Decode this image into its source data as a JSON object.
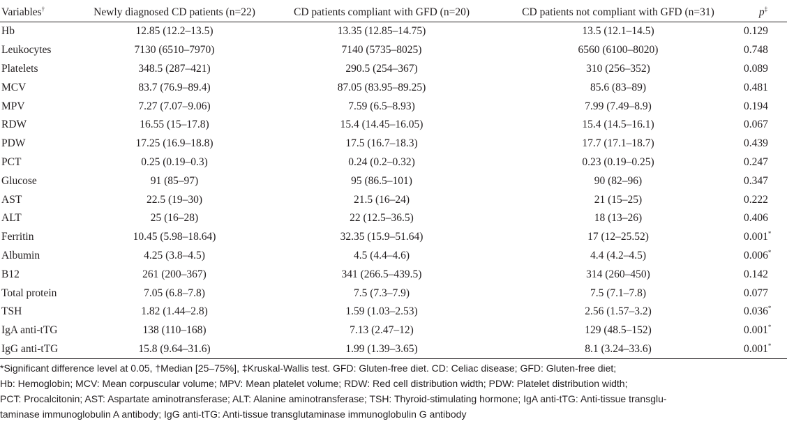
{
  "table": {
    "headers": {
      "variable": "Variables",
      "variable_mark": "†",
      "col1": "Newly diagnosed CD patients (n=22)",
      "col2": "CD patients compliant with GFD (n=20)",
      "col3": "CD patients not compliant with GFD (n=31)",
      "p": "p",
      "p_mark": "‡"
    },
    "rows": [
      {
        "variable": "Hb",
        "col1": "12.85 (12.2–13.5)",
        "col2": "13.35 (12.85–14.75)",
        "col3": "13.5 (12.1–14.5)",
        "p": "0.129",
        "sig": ""
      },
      {
        "variable": "Leukocytes",
        "col1": "7130 (6510–7970)",
        "col2": "7140 (5735–8025)",
        "col3": "6560 (6100–8020)",
        "p": "0.748",
        "sig": ""
      },
      {
        "variable": "Platelets",
        "col1": "348.5 (287–421)",
        "col2": "290.5 (254–367)",
        "col3": "310 (256–352)",
        "p": "0.089",
        "sig": ""
      },
      {
        "variable": "MCV",
        "col1": "83.7 (76.9–89.4)",
        "col2": "87.05 (83.95–89.25)",
        "col3": "85.6 (83–89)",
        "p": "0.481",
        "sig": ""
      },
      {
        "variable": "MPV",
        "col1": "7.27 (7.07–9.06)",
        "col2": "7.59 (6.5–8.93)",
        "col3": "7.99 (7.49–8.9)",
        "p": "0.194",
        "sig": ""
      },
      {
        "variable": "RDW",
        "col1": "16.55 (15–17.8)",
        "col2": "15.4 (14.45–16.05)",
        "col3": "15.4 (14.5–16.1)",
        "p": "0.067",
        "sig": ""
      },
      {
        "variable": "PDW",
        "col1": "17.25 (16.9–18.8)",
        "col2": "17.5 (16.7–18.3)",
        "col3": "17.7 (17.1–18.7)",
        "p": "0.439",
        "sig": ""
      },
      {
        "variable": "PCT",
        "col1": "0.25 (0.19–0.3)",
        "col2": "0.24 (0.2–0.32)",
        "col3": "0.23 (0.19–0.25)",
        "p": "0.247",
        "sig": ""
      },
      {
        "variable": "Glucose",
        "col1": "91 (85–97)",
        "col2": "95 (86.5–101)",
        "col3": "90 (82–96)",
        "p": "0.347",
        "sig": ""
      },
      {
        "variable": "AST",
        "col1": "22.5 (19–30)",
        "col2": "21.5 (16–24)",
        "col3": "21 (15–25)",
        "p": "0.222",
        "sig": ""
      },
      {
        "variable": "ALT",
        "col1": "25 (16–28)",
        "col2": "22 (12.5–36.5)",
        "col3": "18 (13–26)",
        "p": "0.406",
        "sig": ""
      },
      {
        "variable": "Ferritin",
        "col1": "10.45 (5.98–18.64)",
        "col2": "32.35 (15.9–51.64)",
        "col3": "17 (12–25.52)",
        "p": "0.001",
        "sig": "*"
      },
      {
        "variable": "Albumin",
        "col1": "4.25 (3.8–4.5)",
        "col2": "4.5 (4.4–4.6)",
        "col3": "4.4 (4.2–4.5)",
        "p": "0.006",
        "sig": "*"
      },
      {
        "variable": "B12",
        "col1": "261 (200–367)",
        "col2": "341 (266.5–439.5)",
        "col3": "314 (260–450)",
        "p": "0.142",
        "sig": ""
      },
      {
        "variable": "Total protein",
        "col1": "7.05 (6.8–7.8)",
        "col2": "7.5 (7.3–7.9)",
        "col3": "7.5 (7.1–7.8)",
        "p": "0.077",
        "sig": ""
      },
      {
        "variable": "TSH",
        "col1": "1.82 (1.44–2.8)",
        "col2": "1.59 (1.03–2.53)",
        "col3": "2.56 (1.57–3.2)",
        "p": "0.036",
        "sig": "*"
      },
      {
        "variable": "IgA anti-tTG",
        "col1": "138 (110–168)",
        "col2": "7.13 (2.47–12)",
        "col3": "129 (48.5–152)",
        "p": "0.001",
        "sig": "*"
      },
      {
        "variable": "IgG anti-tTG",
        "col1": "15.8 (9.64–31.6)",
        "col2": "1.99 (1.39–3.65)",
        "col3": "8.1 (3.24–33.6)",
        "p": "0.001",
        "sig": "*"
      }
    ]
  },
  "footnote": {
    "lines": [
      "*Significant difference level at 0.05, †Median [25–75%], ‡Kruskal-Wallis test. GFD: Gluten-free diet. CD: Celiac disease; GFD: Gluten-free diet;",
      "Hb: Hemoglobin; MCV: Mean corpuscular volume; MPV: Mean platelet volume; RDW: Red cell distribution width; PDW: Platelet distribution width;",
      "PCT: Procalcitonin; AST: Aspartate aminotransferase; ALT: Alanine aminotransferase; TSH: Thyroid-stimulating hormone; IgA anti-tTG: Anti-tissue transglu-",
      "taminase immunoglobulin A antibody; IgG anti-tTG: Anti-tissue transglutaminase immunoglobulin G antibody"
    ]
  }
}
